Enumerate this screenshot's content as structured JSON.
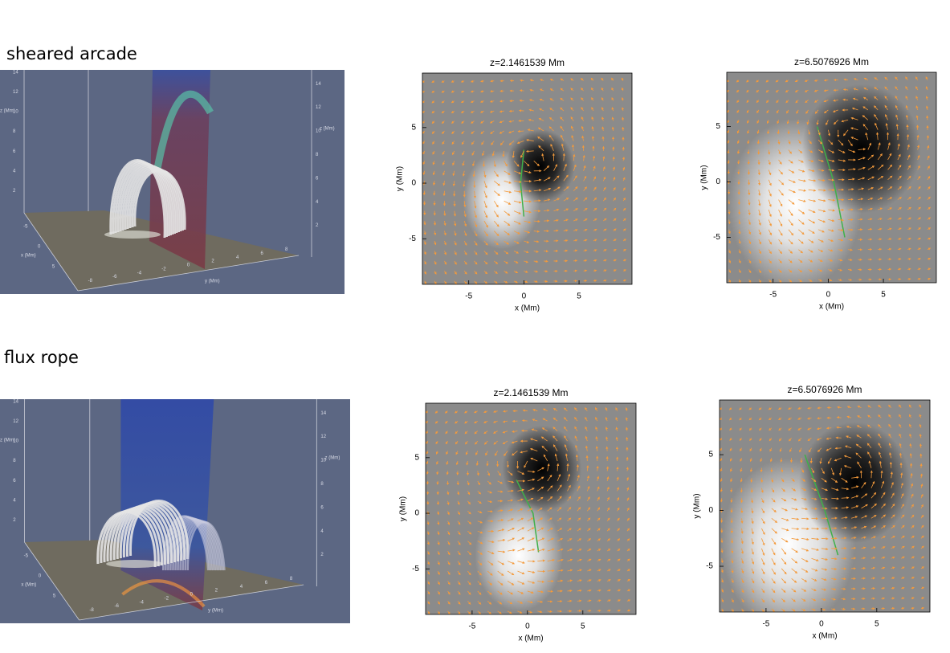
{
  "rows": [
    {
      "label": "sheared arcade",
      "scene": {
        "z_label": "z (Mm)",
        "x_label": "x (Mm)",
        "y_label": "y (Mm)",
        "z_ticks": [
          2,
          4,
          6,
          8,
          10,
          12,
          14
        ],
        "y_ticks": [
          -8,
          -6,
          -4,
          -2,
          0,
          2,
          4,
          6,
          8
        ],
        "x_ticks": [
          -5,
          0,
          5
        ]
      },
      "plots": [
        {
          "title": "z=2.1461539 Mm",
          "xlabel": "x (Mm)",
          "ylabel": "y (Mm)",
          "xticks": [
            -5,
            0,
            5
          ],
          "yticks": [
            -5,
            0,
            5
          ],
          "xlim": [
            -9.2,
            9.8
          ],
          "ylim": [
            -9.1,
            9.9
          ]
        },
        {
          "title": "z=6.5076926 Mm",
          "xlabel": "x (Mm)",
          "ylabel": "y (Mm)",
          "xticks": [
            -5,
            0,
            5
          ],
          "yticks": [
            -5,
            0,
            5
          ],
          "xlim": [
            -9.2,
            9.8
          ],
          "ylim": [
            -9.1,
            9.9
          ]
        }
      ]
    },
    {
      "label": "flux rope",
      "scene": {
        "z_label": "z (Mm)",
        "x_label": "x (Mm)",
        "y_label": "y (Mm)",
        "z_ticks": [
          2,
          4,
          6,
          8,
          10,
          12,
          14
        ],
        "y_ticks": [
          -8,
          -6,
          -4,
          -2,
          0,
          2,
          4,
          6,
          8
        ],
        "x_ticks": [
          -5,
          0,
          5
        ]
      },
      "plots": [
        {
          "title": "z=2.1461539 Mm",
          "xlabel": "x (Mm)",
          "ylabel": "y (Mm)",
          "xticks": [
            -5,
            0,
            5
          ],
          "yticks": [
            -5,
            0,
            5
          ],
          "xlim": [
            -9.2,
            9.8
          ],
          "ylim": [
            -9.1,
            9.9
          ]
        },
        {
          "title": "z=6.5076926 Mm",
          "xlabel": "x (Mm)",
          "ylabel": "y (Mm)",
          "xticks": [
            -5,
            0,
            5
          ],
          "yticks": [
            -5,
            0,
            5
          ],
          "xlim": [
            -9.2,
            9.8
          ],
          "ylim": [
            -9.1,
            9.9
          ]
        }
      ]
    }
  ]
}
